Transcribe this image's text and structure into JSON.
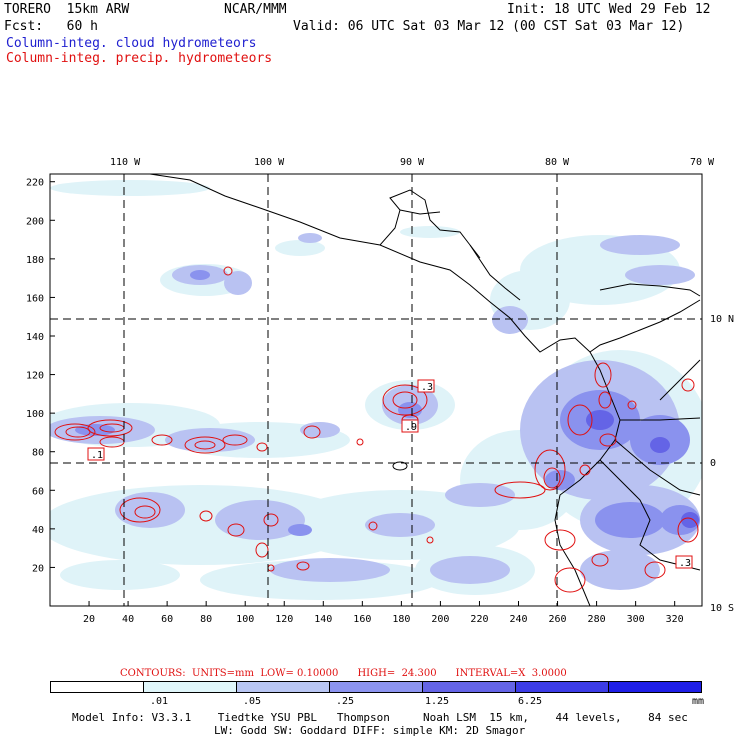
{
  "header": {
    "model": "TORERO  15km ARW",
    "org": "NCAR/MMM",
    "init": "Init: 18 UTC Wed 29 Feb 12",
    "fcst": "Fcst:   60 h",
    "valid": "Valid: 06 UTC Sat 03 Mar 12 (00 CST Sat 03 Mar 12)",
    "field1": "Column-integ. cloud hydrometeors",
    "field2": "Column-integ. precip. hydrometeors"
  },
  "axes": {
    "top_labels": [
      "110 W",
      "100 W",
      "90 W",
      "80 W",
      "70 W"
    ],
    "right_labels": [
      "10 N",
      "0",
      "10 S"
    ],
    "y_ticks": [
      "220",
      "200",
      "180",
      "160",
      "140",
      "120",
      "100",
      "80",
      "60",
      "40",
      "20"
    ],
    "x_ticks": [
      "20",
      "40",
      "60",
      "80",
      "100",
      "120",
      "140",
      "160",
      "180",
      "200",
      "220",
      "240",
      "260",
      "280",
      "300",
      "320"
    ]
  },
  "contour_labels": [
    ".3",
    ".9",
    ".1",
    ".3"
  ],
  "contours_info": {
    "text": "CONTOURS:  UNITS=mm  LOW= 0.10000      HIGH=  24.300      INTERVAL=X  3.0000"
  },
  "legend": {
    "ticks": [
      ".01",
      ".05",
      ".25",
      "1.25",
      "6.25"
    ],
    "unit": "mm",
    "colors": [
      "#ffffff",
      "#e0f6fa",
      "#b9c6f3",
      "#8c94f0",
      "#6464e6",
      "#3c3ce6",
      "#1e1ee6"
    ]
  },
  "model_info": {
    "line1": "Model Info: V3.3.1    Tiedtke YSU PBL   Thompson     Noah LSM  15 km,    44 levels,    84 sec",
    "line2": "LW: Godd SW: Goddard DIFF: simple KM: 2D Smagor"
  }
}
